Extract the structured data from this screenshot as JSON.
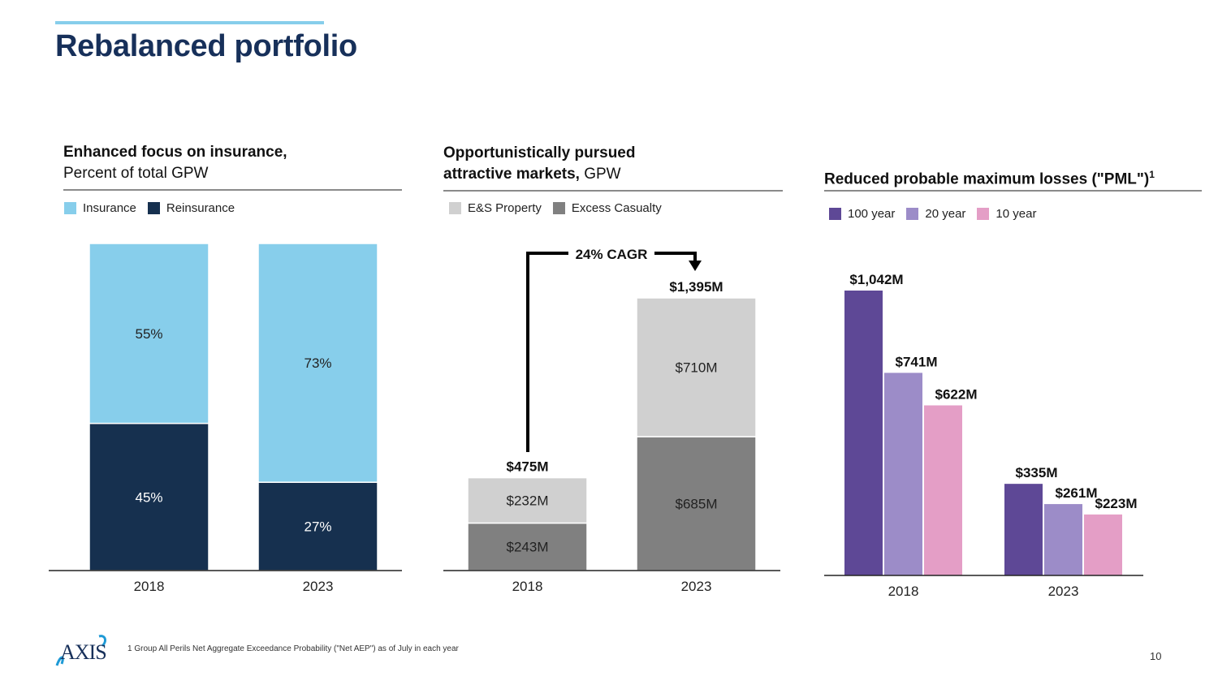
{
  "title": "Rebalanced portfolio",
  "panels": [
    {
      "title_bold": "Enhanced focus on insurance,",
      "title_rest": "Percent of total GPW",
      "legend": [
        {
          "label": "Insurance",
          "color": "#87ceeb"
        },
        {
          "label": "Reinsurance",
          "color": "#16304f"
        }
      ]
    },
    {
      "title_bold_line1": "Opportunistically pursued",
      "title_bold_line2": "attractive markets,",
      "title_rest": "GPW",
      "legend": [
        {
          "label": "E&S Property",
          "color": "#d0d0d0"
        },
        {
          "label": "Excess Casualty",
          "color": "#808080"
        }
      ],
      "annotation": "24% CAGR"
    },
    {
      "title_bold": "Reduced probable maximum losses (\"PML\")",
      "title_sup": "1",
      "legend": [
        {
          "label": "100 year",
          "color": "#5e4896"
        },
        {
          "label": "20 year",
          "color": "#9c8cc8"
        },
        {
          "label": "10 year",
          "color": "#e49ec6"
        }
      ]
    }
  ],
  "chart_data": [
    {
      "type": "bar",
      "stacked": true,
      "title": "Enhanced focus on insurance, Percent of total GPW",
      "categories": [
        "2018",
        "2023"
      ],
      "series": [
        {
          "name": "Reinsurance",
          "values": [
            45,
            27
          ],
          "labels": [
            "45%",
            "27%"
          ],
          "color": "#16304f",
          "label_color": "#ffffff"
        },
        {
          "name": "Insurance",
          "values": [
            55,
            73
          ],
          "labels": [
            "55%",
            "73%"
          ],
          "color": "#87ceeb",
          "label_color": "#222222"
        }
      ],
      "ylim": [
        0,
        100
      ],
      "legend": "top-left",
      "grid": false
    },
    {
      "type": "bar",
      "stacked": true,
      "title": "Opportunistically pursued attractive markets, GPW",
      "categories": [
        "2018",
        "2023"
      ],
      "series": [
        {
          "name": "Excess Casualty",
          "values": [
            243,
            685
          ],
          "labels": [
            "$243M",
            "$685M"
          ],
          "color": "#808080",
          "label_color": "#222222"
        },
        {
          "name": "E&S Property",
          "values": [
            232,
            710
          ],
          "labels": [
            "$232M",
            "$710M"
          ],
          "color": "#d0d0d0",
          "label_color": "#222222"
        }
      ],
      "totals": [
        "$475M",
        "$1,395M"
      ],
      "annotation": "24% CAGR",
      "units": "$M",
      "ylim": [
        0,
        1395
      ],
      "legend": "top-left",
      "grid": false
    },
    {
      "type": "bar",
      "stacked": false,
      "title": "Reduced probable maximum losses (\"PML\")",
      "categories": [
        "2018",
        "2023"
      ],
      "series": [
        {
          "name": "100 year",
          "values": [
            1042,
            335
          ],
          "labels": [
            "$1,042M",
            "$335M"
          ],
          "color": "#5e4896"
        },
        {
          "name": "20 year",
          "values": [
            741,
            261
          ],
          "labels": [
            "$741M",
            "$261M"
          ],
          "color": "#9c8cc8"
        },
        {
          "name": "10 year",
          "values": [
            622,
            223
          ],
          "labels": [
            "$622M",
            "$223M"
          ],
          "color": "#e49ec6"
        }
      ],
      "units": "$M",
      "ylim": [
        0,
        1042
      ],
      "legend": "top-left",
      "grid": false
    }
  ],
  "footnote": "1  Group All Perils Net Aggregate Exceedance Probability (\"Net AEP\") as of July in each year",
  "page_number": "10",
  "logo_text": "AXIS"
}
